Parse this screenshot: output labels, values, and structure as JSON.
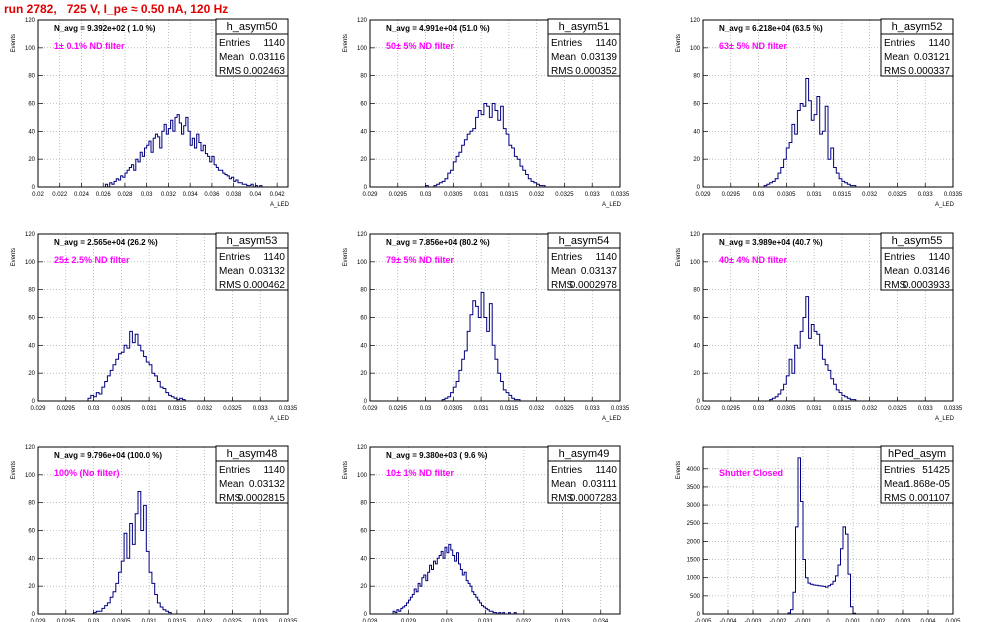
{
  "page_title": "run 2782,   725 V, I_pe ≈ 0.50 nA, 120 Hz",
  "colors": {
    "title": "#e00000",
    "histogram": "#000080",
    "annotation": "#ff00ff",
    "grid": "#9a9a9a"
  },
  "chart_data": [
    {
      "type": "histogram",
      "name": "h_asym50",
      "title": "N_avg = 9.392e+02 ( 1.0 %)",
      "annotation": "1± 0.1% ND filter",
      "xlabel": "A_LED",
      "ylabel": "Events",
      "stats": {
        "Entries": "1140",
        "Mean": "0.03116",
        "RMS": "0.002463"
      },
      "xlim": [
        0.02,
        0.043
      ],
      "ylim": [
        0,
        120
      ],
      "xticks": [
        0.02,
        0.022,
        0.024,
        0.026,
        0.028,
        0.03,
        0.032,
        0.034,
        0.036,
        0.038,
        0.04,
        0.042
      ],
      "xticklabels": [
        "0.02",
        "0.022",
        "0.024",
        "0.026",
        "0.028",
        "0.03",
        "0.032",
        "0.034",
        "0.036",
        "0.038",
        "0.04",
        "0.042"
      ],
      "yticks": [
        0,
        20,
        40,
        60,
        80,
        100,
        120
      ],
      "yticklabels": [
        "0",
        "20",
        "40",
        "60",
        "80",
        "100",
        "120"
      ],
      "bin_start": 0.0262,
      "bin_width": 0.0002,
      "counts": [
        2,
        0,
        3,
        2,
        4,
        6,
        5,
        8,
        7,
        10,
        12,
        14,
        16,
        12,
        20,
        18,
        25,
        22,
        28,
        30,
        33,
        25,
        35,
        38,
        36,
        28,
        40,
        45,
        38,
        42,
        48,
        40,
        50,
        52,
        46,
        38,
        44,
        50,
        40,
        30,
        35,
        28,
        38,
        32,
        26,
        30,
        24,
        22,
        18,
        22,
        16,
        14,
        12,
        12,
        10,
        9,
        8,
        6,
        7,
        4,
        5,
        3,
        3,
        2,
        2,
        1,
        1,
        2,
        0,
        1,
        0,
        1
      ]
    },
    {
      "type": "histogram",
      "name": "h_asym51",
      "title": "N_avg = 4.991e+04 (51.0 %)",
      "annotation": "50± 5% ND filter",
      "xlabel": "A_LED",
      "ylabel": "Events",
      "stats": {
        "Entries": "1140",
        "Mean": "0.03139",
        "RMS": "0.000352"
      },
      "xlim": [
        0.029,
        0.0335
      ],
      "ylim": [
        0,
        120
      ],
      "xticks": [
        0.029,
        0.0295,
        0.03,
        0.0305,
        0.031,
        0.0315,
        0.032,
        0.0325,
        0.033,
        0.0335
      ],
      "xticklabels": [
        "0.029",
        "0.0295",
        "0.03",
        "0.0305",
        "0.031",
        "0.0315",
        "0.032",
        "0.0325",
        "0.033",
        "0.0335"
      ],
      "yticks": [
        0,
        20,
        40,
        60,
        80,
        100,
        120
      ],
      "yticklabels": [
        "0",
        "20",
        "40",
        "60",
        "80",
        "100",
        "120"
      ],
      "bin_start": 0.03,
      "bin_width": 5e-05,
      "counts": [
        1,
        0,
        0,
        1,
        2,
        3,
        4,
        6,
        10,
        12,
        18,
        22,
        25,
        30,
        34,
        38,
        40,
        42,
        50,
        55,
        52,
        60,
        58,
        50,
        60,
        55,
        48,
        58,
        42,
        38,
        30,
        28,
        22,
        20,
        15,
        12,
        9,
        6,
        4,
        3,
        2,
        1,
        1
      ]
    },
    {
      "type": "histogram",
      "name": "h_asym52",
      "title": "N_avg = 6.218e+04 (63.5 %)",
      "annotation": "63± 5% ND filter",
      "xlabel": "A_LED",
      "ylabel": "Events",
      "stats": {
        "Entries": "1140",
        "Mean": "0.03121",
        "RMS": "0.000337"
      },
      "xlim": [
        0.029,
        0.0335
      ],
      "ylim": [
        0,
        120
      ],
      "xticks": [
        0.029,
        0.0295,
        0.03,
        0.0305,
        0.031,
        0.0315,
        0.032,
        0.0325,
        0.033,
        0.0335
      ],
      "xticklabels": [
        "0.029",
        "0.0295",
        "0.03",
        "0.0305",
        "0.031",
        "0.0315",
        "0.032",
        "0.0325",
        "0.033",
        "0.0335"
      ],
      "yticks": [
        0,
        20,
        40,
        60,
        80,
        100,
        120
      ],
      "yticklabels": [
        "0",
        "20",
        "40",
        "60",
        "80",
        "100",
        "120"
      ],
      "bin_start": 0.0301,
      "bin_width": 5e-05,
      "counts": [
        1,
        2,
        3,
        4,
        6,
        10,
        14,
        20,
        28,
        32,
        45,
        38,
        55,
        60,
        58,
        78,
        62,
        48,
        52,
        65,
        38,
        40,
        58,
        20,
        28,
        14,
        10,
        6,
        4,
        3,
        2,
        1,
        1
      ]
    },
    {
      "type": "histogram",
      "name": "h_asym53",
      "title": "N_avg = 2.565e+04 (26.2 %)",
      "annotation": "25± 2.5% ND filter",
      "xlabel": "A_LED",
      "ylabel": "Events",
      "stats": {
        "Entries": "1140",
        "Mean": "0.03132",
        "RMS": "0.000462"
      },
      "xlim": [
        0.029,
        0.0335
      ],
      "ylim": [
        0,
        120
      ],
      "xticks": [
        0.029,
        0.0295,
        0.03,
        0.0305,
        0.031,
        0.0315,
        0.032,
        0.0325,
        0.033,
        0.0335
      ],
      "xticklabels": [
        "0.029",
        "0.0295",
        "0.03",
        "0.0305",
        "0.031",
        "0.0315",
        "0.032",
        "0.0325",
        "0.033",
        "0.0335"
      ],
      "yticks": [
        0,
        20,
        40,
        60,
        80,
        100,
        120
      ],
      "yticklabels": [
        "0",
        "20",
        "40",
        "60",
        "80",
        "100",
        "120"
      ],
      "bin_start": 0.0299,
      "bin_width": 5e-05,
      "counts": [
        2,
        4,
        3,
        6,
        5,
        10,
        14,
        18,
        22,
        26,
        30,
        34,
        35,
        40,
        38,
        50,
        42,
        48,
        40,
        36,
        32,
        28,
        26,
        20,
        18,
        14,
        10,
        9,
        6,
        4,
        3,
        2,
        1,
        2,
        1
      ]
    },
    {
      "type": "histogram",
      "name": "h_asym54",
      "title": "N_avg = 7.856e+04 (80.2 %)",
      "annotation": "79± 5% ND filter",
      "xlabel": "A_LED",
      "ylabel": "Events",
      "stats": {
        "Entries": "1140",
        "Mean": "0.03137",
        "RMS": "0.0002978"
      },
      "xlim": [
        0.029,
        0.0335
      ],
      "ylim": [
        0,
        120
      ],
      "xticks": [
        0.029,
        0.0295,
        0.03,
        0.0305,
        0.031,
        0.0315,
        0.032,
        0.0325,
        0.033,
        0.0335
      ],
      "xticklabels": [
        "0.029",
        "0.0295",
        "0.03",
        "0.0305",
        "0.031",
        "0.0315",
        "0.032",
        "0.0325",
        "0.033",
        "0.0335"
      ],
      "yticks": [
        0,
        20,
        40,
        60,
        80,
        100,
        120
      ],
      "yticklabels": [
        "0",
        "20",
        "40",
        "60",
        "80",
        "100",
        "120"
      ],
      "bin_start": 0.0303,
      "bin_width": 5e-05,
      "counts": [
        1,
        2,
        3,
        6,
        10,
        14,
        22,
        30,
        36,
        50,
        62,
        72,
        68,
        60,
        78,
        60,
        50,
        70,
        40,
        30,
        20,
        14,
        8,
        6,
        4,
        2,
        1,
        1
      ]
    },
    {
      "type": "histogram",
      "name": "h_asym55",
      "title": "N_avg = 3.989e+04 (40.7 %)",
      "annotation": "40± 4% ND filter",
      "xlabel": "A_LED",
      "ylabel": "Events",
      "stats": {
        "Entries": "1140",
        "Mean": "0.03146",
        "RMS": "0.0003933"
      },
      "xlim": [
        0.029,
        0.0335
      ],
      "ylim": [
        0,
        120
      ],
      "xticks": [
        0.029,
        0.0295,
        0.03,
        0.0305,
        0.031,
        0.0315,
        0.032,
        0.0325,
        0.033,
        0.0335
      ],
      "xticklabels": [
        "0.029",
        "0.0295",
        "0.03",
        "0.0305",
        "0.031",
        "0.0315",
        "0.032",
        "0.0325",
        "0.033",
        "0.0335"
      ],
      "yticks": [
        0,
        20,
        40,
        60,
        80,
        100,
        120
      ],
      "yticklabels": [
        "0",
        "20",
        "40",
        "60",
        "80",
        "100",
        "120"
      ],
      "bin_start": 0.0302,
      "bin_width": 5e-05,
      "counts": [
        1,
        2,
        3,
        5,
        8,
        12,
        18,
        30,
        20,
        40,
        38,
        50,
        60,
        75,
        45,
        55,
        50,
        48,
        40,
        30,
        26,
        22,
        16,
        12,
        8,
        6,
        4,
        3,
        2,
        1,
        1
      ]
    },
    {
      "type": "histogram",
      "name": "h_asym48",
      "title": "N_avg = 9.796e+04 (100.0 %)",
      "annotation": "100% (No filter)",
      "xlabel": "A_LED",
      "ylabel": "Events",
      "stats": {
        "Entries": "1140",
        "Mean": "0.03132",
        "RMS": "0.0002815"
      },
      "xlim": [
        0.029,
        0.0335
      ],
      "ylim": [
        0,
        120
      ],
      "xticks": [
        0.029,
        0.0295,
        0.03,
        0.0305,
        0.031,
        0.0315,
        0.032,
        0.0325,
        0.033,
        0.0335
      ],
      "xticklabels": [
        "0.029",
        "0.0295",
        "0.03",
        "0.0305",
        "0.031",
        "0.0315",
        "0.032",
        "0.0325",
        "0.033",
        "0.0335"
      ],
      "yticks": [
        0,
        20,
        40,
        60,
        80,
        100,
        120
      ],
      "yticklabels": [
        "0",
        "20",
        "40",
        "60",
        "80",
        "100",
        "120"
      ],
      "bin_start": 0.03,
      "bin_width": 5e-05,
      "counts": [
        1,
        2,
        2,
        4,
        6,
        8,
        12,
        16,
        22,
        30,
        38,
        58,
        40,
        65,
        50,
        72,
        88,
        60,
        78,
        45,
        30,
        22,
        14,
        8,
        5,
        3,
        2,
        1
      ]
    },
    {
      "type": "histogram",
      "name": "h_asym49",
      "title": "N_avg = 9.380e+03 ( 9.6 %)",
      "annotation": "10± 1% ND filter",
      "xlabel": "A_LED",
      "ylabel": "Events",
      "stats": {
        "Entries": "1140",
        "Mean": "0.03111",
        "RMS": "0.0007283"
      },
      "xlim": [
        0.028,
        0.0345
      ],
      "ylim": [
        0,
        120
      ],
      "xticks": [
        0.028,
        0.029,
        0.03,
        0.031,
        0.032,
        0.033,
        0.034
      ],
      "xticklabels": [
        "0.028",
        "0.029",
        "0.03",
        "0.031",
        "0.032",
        "0.033",
        "0.034"
      ],
      "yticks": [
        0,
        20,
        40,
        60,
        80,
        100,
        120
      ],
      "yticklabels": [
        "0",
        "20",
        "40",
        "60",
        "80",
        "100",
        "120"
      ],
      "bin_start": 0.0286,
      "bin_width": 5e-05,
      "counts": [
        2,
        1,
        3,
        2,
        4,
        5,
        6,
        8,
        10,
        12,
        14,
        18,
        16,
        22,
        20,
        26,
        28,
        24,
        30,
        35,
        32,
        38,
        36,
        40,
        42,
        45,
        40,
        48,
        44,
        50,
        46,
        42,
        38,
        44,
        36,
        32,
        28,
        30,
        24,
        22,
        20,
        16,
        14,
        12,
        10,
        8,
        6,
        5,
        4,
        3,
        2,
        2,
        1,
        1,
        0,
        1,
        0,
        1,
        0,
        0,
        1,
        0,
        0,
        1
      ]
    },
    {
      "type": "histogram",
      "name": "hPed_asym",
      "title": "",
      "annotation": "Shutter Closed",
      "xlabel": "A_LED",
      "ylabel": "Events",
      "stats": {
        "Entries": "51425",
        "Mean": "1.868e-05",
        "RMS": "0.001107"
      },
      "xlim": [
        -0.005,
        0.005
      ],
      "ylim": [
        0,
        4600
      ],
      "xticks": [
        -0.005,
        -0.004,
        -0.003,
        -0.002,
        -0.001,
        0,
        0.001,
        0.002,
        0.003,
        0.004,
        0.005
      ],
      "xticklabels": [
        "-0.005",
        "-0.004",
        "-0.003",
        "-0.002",
        "-0.001",
        "0",
        "0.001",
        "0.002",
        "0.003",
        "0.004",
        "0.005"
      ],
      "yticks": [
        0,
        500,
        1000,
        1500,
        2000,
        2500,
        3000,
        3500,
        4000
      ],
      "yticklabels": [
        "0",
        "500",
        "1000",
        "1500",
        "2000",
        "2500",
        "3000",
        "3500",
        "4000"
      ],
      "bin_start": -0.0016,
      "bin_width": 0.0001,
      "counts": [
        30,
        120,
        600,
        2400,
        4300,
        3100,
        1500,
        1000,
        850,
        820,
        800,
        790,
        780,
        770,
        760,
        740,
        780,
        820,
        900,
        1050,
        1350,
        1800,
        2400,
        2200,
        1100,
        200,
        20
      ]
    }
  ]
}
